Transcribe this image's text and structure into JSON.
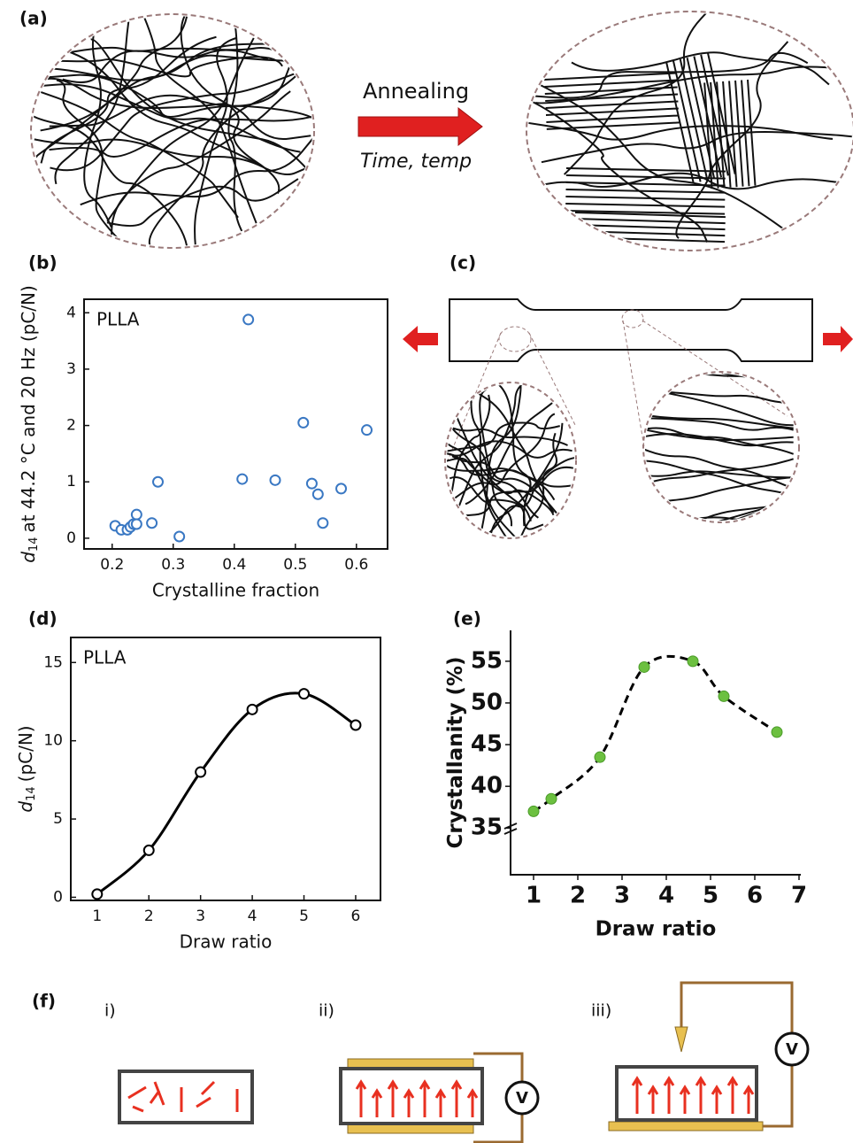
{
  "panel_labels": [
    "(a)",
    "(b)",
    "(c)",
    "(d)",
    "(e)",
    "(f)"
  ],
  "annealing": {
    "label": "Annealing",
    "conditions": "Time, temp"
  },
  "circuits": [
    "i)",
    "ii)",
    "iii)"
  ],
  "voltmeter": "V",
  "chart_data": [
    {
      "type": "scatter",
      "annotation": "PLLA",
      "xlabel": "Crystalline fraction",
      "ylabel": {
        "symbol": "d",
        "subscript": "14",
        "text": "at 44.2 °C and 20 Hz (pC/N)"
      },
      "x": [
        0.205,
        0.215,
        0.225,
        0.23,
        0.235,
        0.24,
        0.24,
        0.265,
        0.275,
        0.31,
        0.413,
        0.423,
        0.467,
        0.513,
        0.527,
        0.537,
        0.545,
        0.575,
        0.617
      ],
      "values": [
        0.22,
        0.15,
        0.15,
        0.2,
        0.25,
        0.42,
        0.25,
        0.27,
        1.0,
        0.03,
        1.05,
        3.88,
        1.03,
        2.05,
        0.97,
        0.78,
        0.27,
        0.88,
        1.92
      ],
      "color": "#3a78c3",
      "markers": "open",
      "xlim": [
        0.154,
        0.651
      ],
      "xticks": [
        0.2,
        0.3,
        0.4,
        0.5,
        0.6
      ],
      "ylim": [
        -0.19,
        4.24
      ],
      "yticks": [
        0,
        1,
        2,
        3,
        4
      ]
    },
    {
      "type": "line",
      "annotation": "PLLA",
      "xlabel": "Draw ratio",
      "ylabel": {
        "symbol": "d",
        "subscript": "14",
        "text": "(pC/N)"
      },
      "x": [
        1,
        2,
        3,
        4,
        5,
        6
      ],
      "values": [
        0.2,
        3,
        8,
        12,
        13,
        11
      ],
      "color": "#000000",
      "line_color": "#000000",
      "line_style": "solid",
      "markers": "open",
      "xlim": [
        0.49,
        6.48
      ],
      "xticks": [
        1,
        2,
        3,
        4,
        5,
        6
      ],
      "ylim": [
        -0.2,
        16.6
      ],
      "yticks": [
        0,
        5,
        10,
        15
      ]
    },
    {
      "type": "line",
      "xlabel": "Draw ratio",
      "ylabel": {
        "text": "Crystallanity (%)"
      },
      "x": [
        1,
        1.4,
        2.5,
        3.5,
        4.6,
        5.3,
        6.5
      ],
      "values": [
        37,
        38.5,
        43.5,
        54.3,
        55,
        50.8,
        46.5
      ],
      "color": "#6cc040",
      "line_color": "#000000",
      "line_style": "dashed",
      "markers": "filled",
      "xlim": [
        0.48,
        7.04
      ],
      "xticks": [
        1,
        2,
        3,
        4,
        5,
        6,
        7
      ],
      "ylim": [
        29.4,
        58.7
      ],
      "yticks": [
        35,
        40,
        45,
        50,
        55
      ]
    }
  ]
}
